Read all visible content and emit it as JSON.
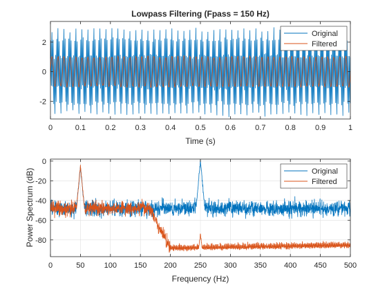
{
  "colors": {
    "original": "#0072BD",
    "filtered": "#D95319",
    "axes": "#262626",
    "grid": "#DFDFDF",
    "background": "#FFFFFF"
  },
  "chart_data": [
    {
      "type": "line",
      "title": "Lowpass Filtering  (Fpass = 150 Hz)",
      "xlabel": "Time (s)",
      "ylabel": "",
      "xlim": [
        0,
        1
      ],
      "ylim": [
        -3.2,
        3.4
      ],
      "xticks": [
        "0",
        "0.1",
        "0.2",
        "0.3",
        "0.4",
        "0.5",
        "0.6",
        "0.7",
        "0.8",
        "0.9",
        "1"
      ],
      "yticks": [
        "-2",
        "0",
        "2"
      ],
      "grid": false,
      "legend_position": "top-right",
      "series": [
        {
          "name": "Original",
          "description_of_signal": "sum of 50 Hz and 250 Hz sinusoids plus noise, amplitude about 3",
          "signal": {
            "f1": 50,
            "f2": 250,
            "amplitude_peak": 3.1
          }
        },
        {
          "name": "Filtered",
          "signal": {
            "f1": 50,
            "amplitude_peak": 1.0
          }
        }
      ]
    },
    {
      "type": "line",
      "title": "",
      "xlabel": "Frequency (Hz)",
      "ylabel": "Power Spectrum (dB)",
      "xlim": [
        0,
        500
      ],
      "ylim": [
        -97,
        2
      ],
      "xticks": [
        "0",
        "50",
        "100",
        "150",
        "200",
        "250",
        "300",
        "350",
        "400",
        "450",
        "500"
      ],
      "yticks": [
        "0",
        "-20",
        "-40",
        "-60",
        "-80"
      ],
      "grid": true,
      "legend_position": "top-right",
      "series": [
        {
          "name": "Original",
          "noise_floor_db": -48,
          "peaks": [
            {
              "x": 50,
              "y": -5
            },
            {
              "x": 250,
              "y": 0
            }
          ]
        },
        {
          "name": "Filtered",
          "passband_floor_db": -48,
          "stopband_floor_db": -88,
          "transition_hz": [
            165,
            200
          ],
          "peaks": [
            {
              "x": 50,
              "y": -5
            },
            {
              "x": 250,
              "y": -74
            }
          ]
        }
      ]
    }
  ]
}
